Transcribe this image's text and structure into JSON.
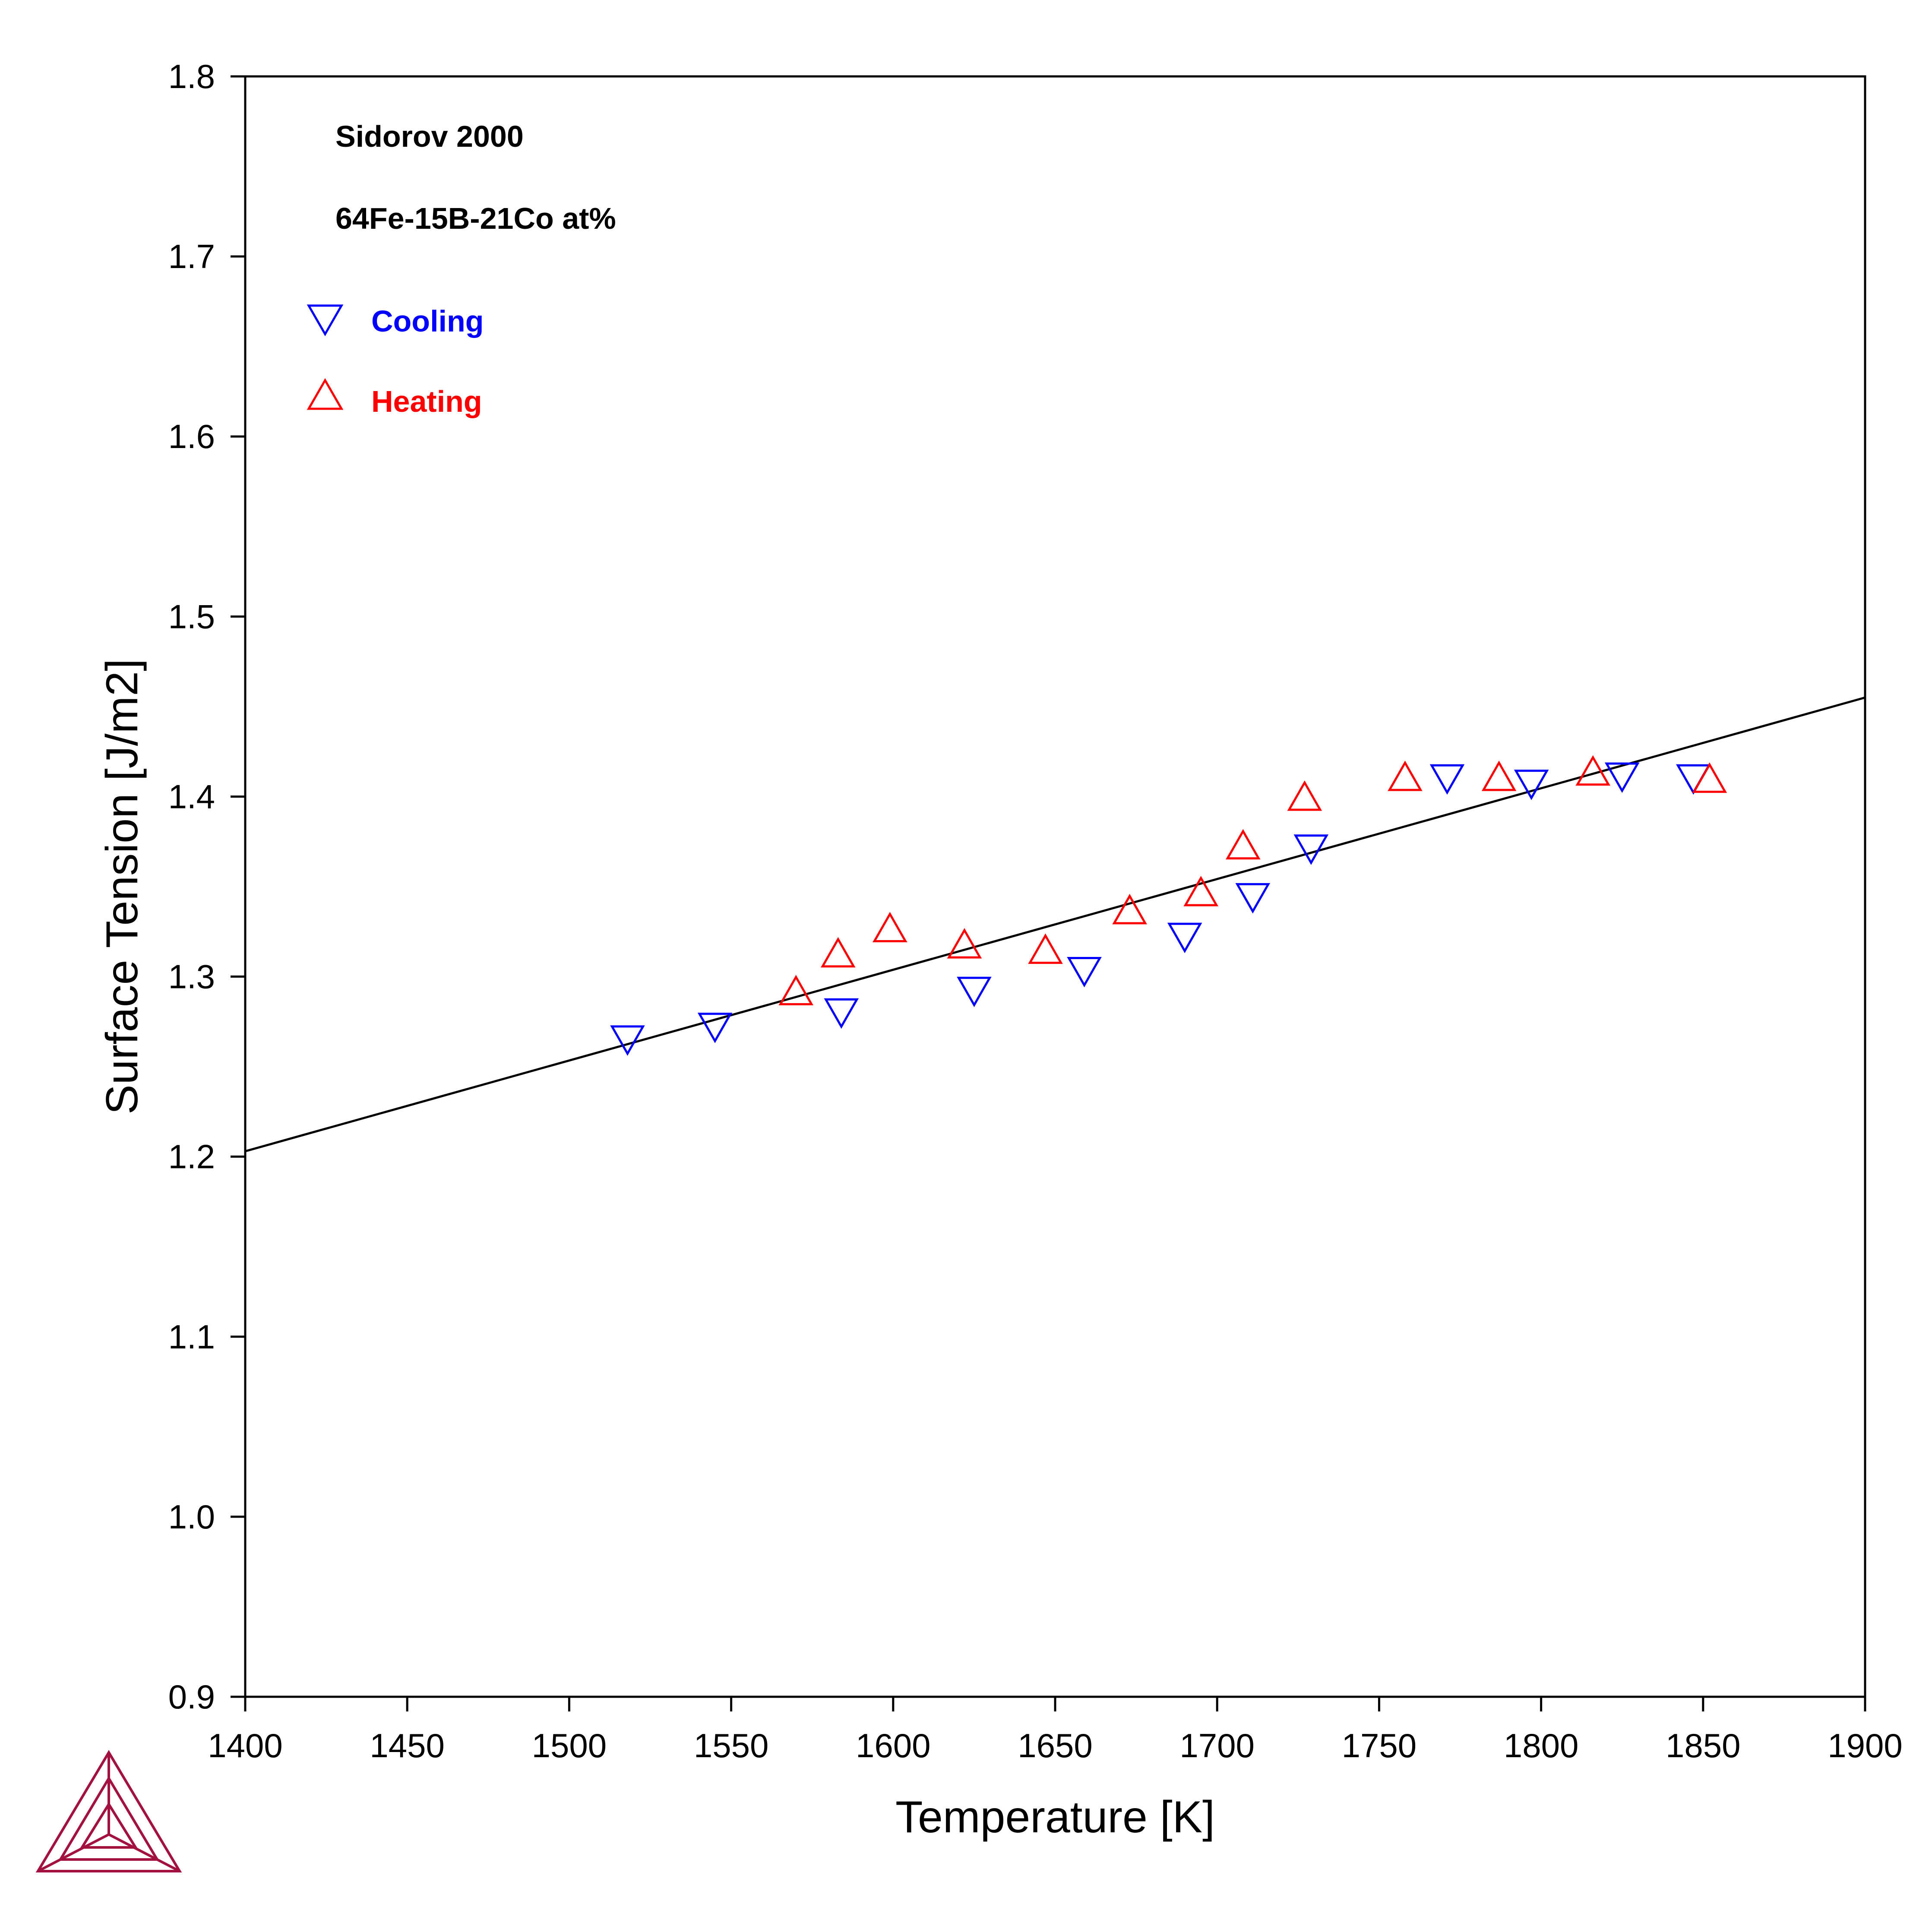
{
  "chart_data": {
    "type": "scatter",
    "title": "",
    "xlabel": "Temperature [K]",
    "ylabel": "Surface Tension [J/m2]",
    "xlim": [
      1400,
      1900
    ],
    "ylim": [
      0.9,
      1.8
    ],
    "xticks": [
      1400,
      1450,
      1500,
      1550,
      1600,
      1650,
      1700,
      1750,
      1800,
      1850,
      1900
    ],
    "xtick_labels": [
      "1400",
      "1450",
      "1500",
      "1550",
      "1600",
      "1650",
      "1700",
      "1750",
      "1800",
      "1850",
      "1900"
    ],
    "yticks": [
      0.9,
      1.0,
      1.1,
      1.2,
      1.3,
      1.4,
      1.5,
      1.6,
      1.7,
      1.8
    ],
    "ytick_labels": [
      "0.9",
      "1.0",
      "1.1",
      "1.2",
      "1.3",
      "1.4",
      "1.5",
      "1.6",
      "1.7",
      "1.8"
    ],
    "grid": false,
    "legend_position": "top-left",
    "annotations": [
      "Sidorov 2000",
      "64Fe-15B-21Co at%"
    ],
    "line": {
      "x": [
        1400,
        1900
      ],
      "y": [
        1.203,
        1.455
      ],
      "color": "#000000"
    },
    "series": [
      {
        "name": "Cooling",
        "marker": "triangle-down",
        "color": "#0000ff",
        "x": [
          1518,
          1545,
          1584,
          1625,
          1659,
          1690,
          1711,
          1729,
          1771,
          1797,
          1825,
          1847
        ],
        "y": [
          1.265,
          1.272,
          1.28,
          1.292,
          1.303,
          1.322,
          1.344,
          1.371,
          1.41,
          1.407,
          1.411,
          1.41
        ]
      },
      {
        "name": "Heating",
        "marker": "triangle-up",
        "color": "#ff0000",
        "x": [
          1570,
          1583,
          1599,
          1622,
          1647,
          1673,
          1695,
          1708,
          1727,
          1758,
          1787,
          1816,
          1852
        ],
        "y": [
          1.292,
          1.313,
          1.327,
          1.318,
          1.315,
          1.337,
          1.347,
          1.373,
          1.4,
          1.411,
          1.411,
          1.414,
          1.41
        ]
      }
    ]
  }
}
